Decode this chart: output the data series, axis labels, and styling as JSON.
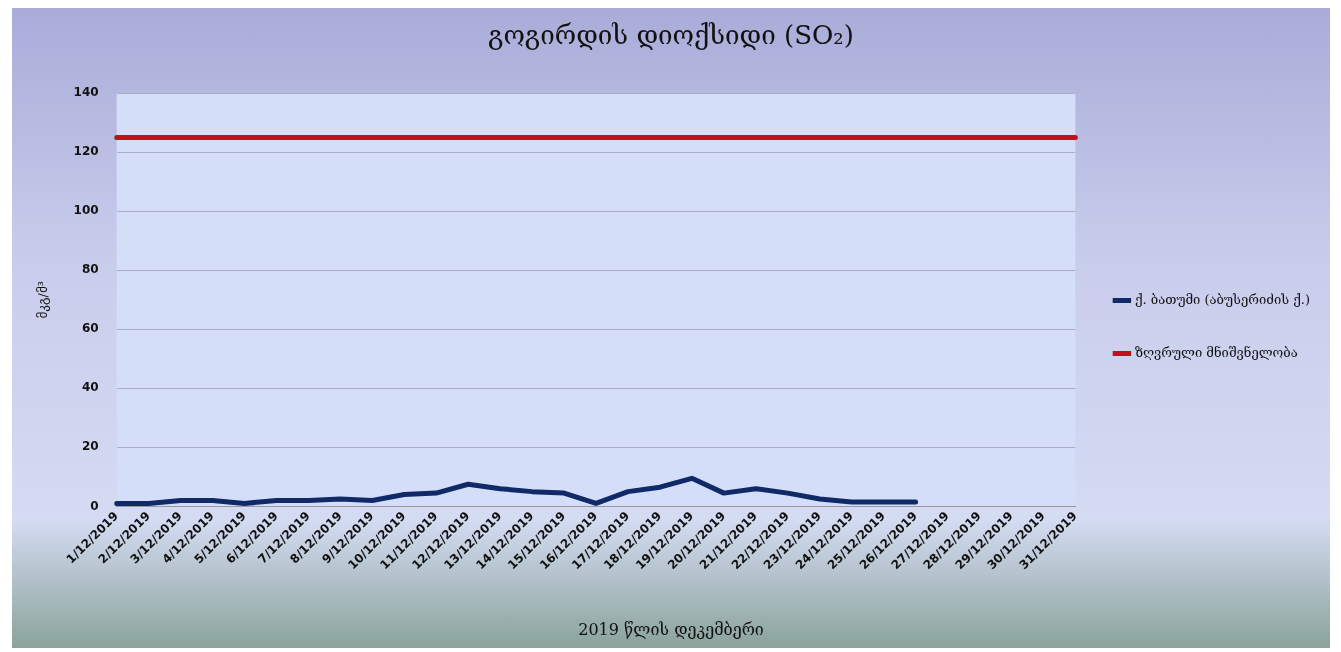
{
  "chart_data": {
    "type": "line",
    "title": "გოგირდის დიოქსიდი (SO₂)",
    "xlabel": "2019 წლის დეკემბერი",
    "ylabel": "მკგ/მ³",
    "categories": [
      "1/12/2019",
      "2/12/2019",
      "3/12/2019",
      "4/12/2019",
      "5/12/2019",
      "6/12/2019",
      "7/12/2019",
      "8/12/2019",
      "9/12/2019",
      "10/12/2019",
      "11/12/2019",
      "12/12/2019",
      "13/12/2019",
      "14/12/2019",
      "15/12/2019",
      "16/12/2019",
      "17/12/2019",
      "18/12/2019",
      "19/12/2019",
      "20/12/2019",
      "21/12/2019",
      "22/12/2019",
      "23/12/2019",
      "24/12/2019",
      "25/12/2019",
      "26/12/2019",
      "27/12/2019",
      "28/12/2019",
      "29/12/2019",
      "30/12/2019",
      "31/12/2019"
    ],
    "series": [
      {
        "name": "ქ. ბათუმი (აბუსერიძის ქ.)",
        "color": "#0f2a66",
        "values": [
          1,
          1,
          2,
          2,
          1,
          2,
          2,
          2.5,
          2,
          4,
          4.5,
          7.5,
          6,
          5,
          4.5,
          1,
          5,
          6.5,
          9.5,
          4.5,
          6,
          4.5,
          2.5,
          1.5,
          1.5,
          1.5,
          null,
          null,
          null,
          null,
          null
        ]
      },
      {
        "name": "ზღვრული მნიშვნელობა",
        "color": "#c0101e",
        "values": [
          125,
          125,
          125,
          125,
          125,
          125,
          125,
          125,
          125,
          125,
          125,
          125,
          125,
          125,
          125,
          125,
          125,
          125,
          125,
          125,
          125,
          125,
          125,
          125,
          125,
          125,
          125,
          125,
          125,
          125,
          125
        ]
      }
    ],
    "ylim": [
      0,
      140
    ],
    "yticks": [
      0,
      20,
      40,
      60,
      80,
      100,
      120,
      140
    ],
    "grid": "y",
    "legend": "right",
    "marker": "none",
    "line_style": "solid"
  }
}
